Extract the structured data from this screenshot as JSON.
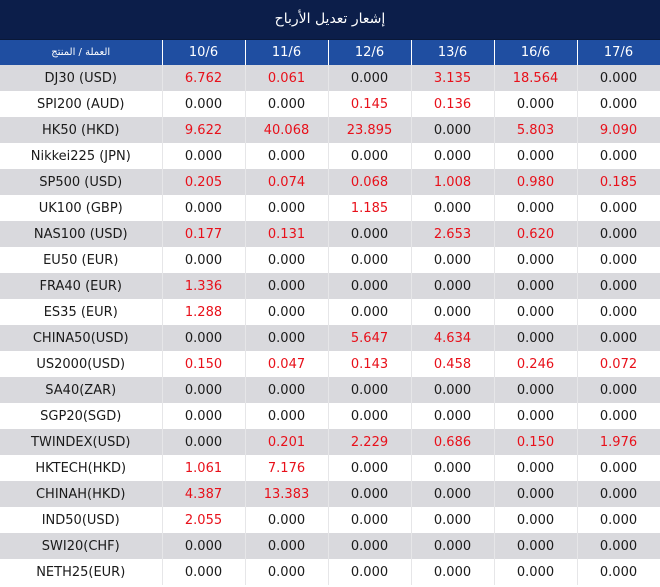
{
  "title": "إشعار تعديل الأرباح",
  "header": {
    "product_label": "العملة / المنتج",
    "dates": [
      "10/6",
      "11/6",
      "12/6",
      "13/6",
      "16/6",
      "17/6"
    ]
  },
  "colors": {
    "title_bg": "#0c1e4a",
    "header_bg": "#1f4ea1",
    "stripe": "#d9d9dd",
    "positive": "#e8101a"
  },
  "rows": [
    {
      "name": "DJ30 (USD)",
      "values": [
        "6.762",
        "0.061",
        "0.000",
        "3.135",
        "18.564",
        "0.000"
      ]
    },
    {
      "name": "SPI200 (AUD)",
      "values": [
        "0.000",
        "0.000",
        "0.145",
        "0.136",
        "0.000",
        "0.000"
      ]
    },
    {
      "name": "HK50 (HKD)",
      "values": [
        "9.622",
        "40.068",
        "23.895",
        "0.000",
        "5.803",
        "9.090"
      ]
    },
    {
      "name": "Nikkei225 (JPN)",
      "values": [
        "0.000",
        "0.000",
        "0.000",
        "0.000",
        "0.000",
        "0.000"
      ]
    },
    {
      "name": "SP500 (USD)",
      "values": [
        "0.205",
        "0.074",
        "0.068",
        "1.008",
        "0.980",
        "0.185"
      ]
    },
    {
      "name": "UK100 (GBP)",
      "values": [
        "0.000",
        "0.000",
        "1.185",
        "0.000",
        "0.000",
        "0.000"
      ]
    },
    {
      "name": "NAS100 (USD)",
      "values": [
        "0.177",
        "0.131",
        "0.000",
        "2.653",
        "0.620",
        "0.000"
      ]
    },
    {
      "name": "EU50 (EUR)",
      "values": [
        "0.000",
        "0.000",
        "0.000",
        "0.000",
        "0.000",
        "0.000"
      ]
    },
    {
      "name": "FRA40 (EUR)",
      "values": [
        "1.336",
        "0.000",
        "0.000",
        "0.000",
        "0.000",
        "0.000"
      ]
    },
    {
      "name": "ES35 (EUR)",
      "values": [
        "1.288",
        "0.000",
        "0.000",
        "0.000",
        "0.000",
        "0.000"
      ]
    },
    {
      "name": "CHINA50(USD)",
      "values": [
        "0.000",
        "0.000",
        "5.647",
        "4.634",
        "0.000",
        "0.000"
      ]
    },
    {
      "name": "US2000(USD)",
      "values": [
        "0.150",
        "0.047",
        "0.143",
        "0.458",
        "0.246",
        "0.072"
      ]
    },
    {
      "name": "SA40(ZAR)",
      "values": [
        "0.000",
        "0.000",
        "0.000",
        "0.000",
        "0.000",
        "0.000"
      ]
    },
    {
      "name": "SGP20(SGD)",
      "values": [
        "0.000",
        "0.000",
        "0.000",
        "0.000",
        "0.000",
        "0.000"
      ]
    },
    {
      "name": "TWINDEX(USD)",
      "values": [
        "0.000",
        "0.201",
        "2.229",
        "0.686",
        "0.150",
        "1.976"
      ]
    },
    {
      "name": "HKTECH(HKD)",
      "values": [
        "1.061",
        "7.176",
        "0.000",
        "0.000",
        "0.000",
        "0.000"
      ]
    },
    {
      "name": "CHINAH(HKD)",
      "values": [
        "4.387",
        "13.383",
        "0.000",
        "0.000",
        "0.000",
        "0.000"
      ]
    },
    {
      "name": "IND50(USD)",
      "values": [
        "2.055",
        "0.000",
        "0.000",
        "0.000",
        "0.000",
        "0.000"
      ]
    },
    {
      "name": "SWI20(CHF)",
      "values": [
        "0.000",
        "0.000",
        "0.000",
        "0.000",
        "0.000",
        "0.000"
      ]
    },
    {
      "name": "NETH25(EUR)",
      "values": [
        "0.000",
        "0.000",
        "0.000",
        "0.000",
        "0.000",
        "0.000"
      ]
    }
  ]
}
